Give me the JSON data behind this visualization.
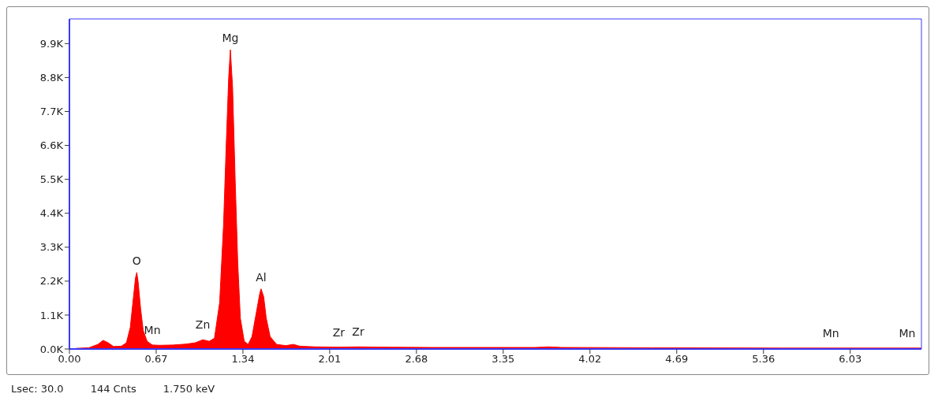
{
  "chart_data": {
    "type": "area",
    "x": [
      0.05,
      0.15,
      0.22,
      0.26,
      0.3,
      0.34,
      0.4,
      0.44,
      0.47,
      0.49,
      0.51,
      0.52,
      0.53,
      0.55,
      0.57,
      0.6,
      0.64,
      0.7,
      0.8,
      0.9,
      0.97,
      1.03,
      1.08,
      1.12,
      1.16,
      1.19,
      1.21,
      1.23,
      1.243,
      1.26,
      1.28,
      1.3,
      1.32,
      1.35,
      1.38,
      1.41,
      1.44,
      1.47,
      1.48,
      1.5,
      1.52,
      1.55,
      1.6,
      1.67,
      1.73,
      1.78,
      1.9,
      2.08,
      2.23,
      2.4,
      2.8,
      3.2,
      3.6,
      3.7,
      3.8,
      4.5,
      5.5,
      5.88,
      6.47,
      6.58
    ],
    "series": [
      {
        "color": "#ff0000",
        "values": [
          20,
          40,
          150,
          280,
          200,
          80,
          90,
          200,
          700,
          1500,
          2300,
          2480,
          2200,
          1300,
          600,
          250,
          130,
          120,
          130,
          160,
          200,
          300,
          250,
          350,
          1500,
          4000,
          6500,
          8800,
          9700,
          8500,
          5500,
          2800,
          1000,
          250,
          150,
          400,
          1100,
          1800,
          1950,
          1700,
          1000,
          400,
          150,
          110,
          150,
          90,
          70,
          60,
          70,
          60,
          50,
          50,
          50,
          70,
          50,
          40,
          30,
          30,
          30,
          30
        ]
      }
    ],
    "xlim": [
      0,
      6.58
    ],
    "xticks": [
      {
        "value": 0,
        "label": "0.00"
      },
      0.67,
      1.34,
      2.01,
      2.68,
      3.35,
      4.02,
      4.69,
      5.36,
      6.03
    ],
    "ylim": [
      0,
      10700
    ],
    "yticks": [
      {
        "value": 0,
        "label": "0.0K"
      },
      {
        "value": 1100,
        "label": "1.1K"
      },
      {
        "value": 2200,
        "label": "2.2K"
      },
      {
        "value": 3300,
        "label": "3.3K"
      },
      {
        "value": 4400,
        "label": "4.4K"
      },
      {
        "value": 5500,
        "label": "5.5K"
      },
      {
        "value": 6600,
        "label": "6.6K"
      },
      {
        "value": 7700,
        "label": "7.7K"
      },
      {
        "value": 8800,
        "label": "8.8K"
      },
      {
        "value": 9900,
        "label": "9.9K"
      }
    ],
    "grid": false,
    "annotations": [
      {
        "text": "O",
        "x": 0.52,
        "y": 2480
      },
      {
        "text": "Mn",
        "x": 0.64,
        "y": 130
      },
      {
        "text": "Zn",
        "x": 1.03,
        "y": 300
      },
      {
        "text": "Mg",
        "x": 1.243,
        "y": 9700
      },
      {
        "text": "Al",
        "x": 1.48,
        "y": 1950
      },
      {
        "text": "Zr",
        "x": 2.08,
        "y": 60
      },
      {
        "text": "Zr",
        "x": 2.23,
        "y": 70
      },
      {
        "text": "Mn",
        "x": 5.88,
        "y": 30
      },
      {
        "text": "Mn",
        "x": 6.47,
        "y": 30
      },
      "Lsec: 30.0",
      "144 Cnts",
      "1.750 keV"
    ]
  }
}
